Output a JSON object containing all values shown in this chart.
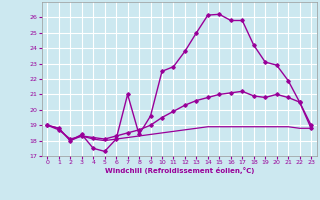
{
  "xlabel": "Windchill (Refroidissement éolien,°C)",
  "background_color": "#cce8f0",
  "grid_color": "#ffffff",
  "line_color": "#990099",
  "xlim": [
    -0.5,
    23.5
  ],
  "ylim": [
    17,
    27
  ],
  "yticks": [
    17,
    18,
    19,
    20,
    21,
    22,
    23,
    24,
    25,
    26
  ],
  "xticks": [
    0,
    1,
    2,
    3,
    4,
    5,
    6,
    7,
    8,
    9,
    10,
    11,
    12,
    13,
    14,
    15,
    16,
    17,
    18,
    19,
    20,
    21,
    22,
    23
  ],
  "lines": [
    {
      "x": [
        0,
        1,
        2,
        3,
        4,
        5,
        6,
        7,
        8,
        9,
        10,
        11,
        12,
        13,
        14,
        15,
        16,
        17,
        18,
        19,
        20,
        21,
        22,
        23
      ],
      "y": [
        19.0,
        18.8,
        18.0,
        18.4,
        17.5,
        17.3,
        18.1,
        21.0,
        18.4,
        19.6,
        22.5,
        22.8,
        23.8,
        25.0,
        26.15,
        26.2,
        25.8,
        25.8,
        24.2,
        23.1,
        22.9,
        21.9,
        20.5,
        18.8
      ],
      "marker": true,
      "linewidth": 1.0
    },
    {
      "x": [
        0,
        1,
        2,
        3,
        4,
        5,
        6,
        7,
        8,
        9,
        10,
        11,
        12,
        13,
        14,
        15,
        16,
        17,
        18,
        19,
        20,
        21,
        22,
        23
      ],
      "y": [
        19.0,
        18.7,
        18.1,
        18.3,
        18.2,
        18.1,
        18.3,
        18.5,
        18.7,
        19.0,
        19.5,
        19.9,
        20.3,
        20.6,
        20.8,
        21.0,
        21.1,
        21.2,
        20.9,
        20.8,
        21.0,
        20.8,
        20.5,
        19.0
      ],
      "marker": true,
      "linewidth": 1.0
    },
    {
      "x": [
        0,
        1,
        2,
        3,
        4,
        5,
        6,
        7,
        8,
        9,
        10,
        11,
        12,
        13,
        14,
        15,
        16,
        17,
        18,
        19,
        20,
        21,
        22,
        23
      ],
      "y": [
        19.0,
        18.8,
        18.0,
        18.3,
        18.1,
        18.0,
        18.1,
        18.2,
        18.3,
        18.4,
        18.5,
        18.6,
        18.7,
        18.8,
        18.9,
        18.9,
        18.9,
        18.9,
        18.9,
        18.9,
        18.9,
        18.9,
        18.8,
        18.8
      ],
      "marker": false,
      "linewidth": 0.9
    }
  ]
}
